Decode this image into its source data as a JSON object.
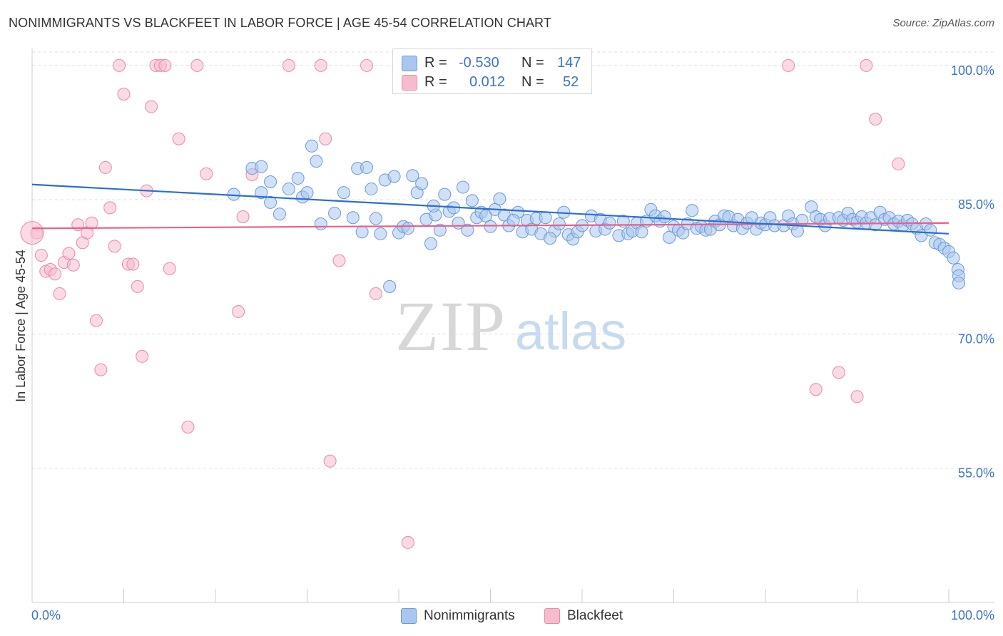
{
  "title": "NONIMMIGRANTS VS BLACKFEET IN LABOR FORCE | AGE 45-54 CORRELATION CHART",
  "source": "Source: ZipAtlas.com",
  "watermark": {
    "zip": "ZIP",
    "atlas": "atlas"
  },
  "legend": {
    "rows": [
      {
        "r_label": "R =",
        "r_value": "-0.530",
        "n_label": "N =",
        "n_value": "147"
      },
      {
        "r_label": "R =",
        "r_value": "0.012",
        "n_label": "N =",
        "n_value": "52"
      }
    ]
  },
  "bottom_legend": [
    "Nonimmigrants",
    "Blackfeet"
  ],
  "colors": {
    "blue_fill": "#a9c7ee",
    "blue_stroke": "#6a9ad8",
    "blue_line": "#2a6fd0",
    "pink_fill": "#f6bccd",
    "pink_stroke": "#ea8aa8",
    "pink_line": "#e8608a",
    "axis_label": "#3a74c8",
    "grid": "#dddddd"
  },
  "chart_data": {
    "type": "scatter",
    "title": "NONIMMIGRANTS VS BLACKFEET IN LABOR FORCE | AGE 45-54 CORRELATION CHART",
    "xlabel": "",
    "ylabel": "In Labor Force | Age 45-54",
    "xlim": [
      0,
      100
    ],
    "ylim": [
      40,
      101.5
    ],
    "x_tick_labels": [
      "0.0%",
      "100.0%"
    ],
    "y_ticks": [
      55,
      70,
      85,
      100
    ],
    "y_tick_labels": [
      "55.0%",
      "70.0%",
      "85.0%",
      "100.0%"
    ],
    "grid": true,
    "legend_position": "top-center",
    "series": [
      {
        "name": "Nonimmigrants",
        "trend": [
          [
            0,
            86.7
          ],
          [
            100,
            81.2
          ]
        ],
        "points": [
          [
            22.0,
            85.6
          ],
          [
            24.0,
            88.5
          ],
          [
            25.0,
            88.7
          ],
          [
            25.0,
            85.8
          ],
          [
            26.0,
            84.7
          ],
          [
            26.0,
            87.0
          ],
          [
            27.0,
            83.4
          ],
          [
            28.0,
            86.2
          ],
          [
            29.0,
            87.4
          ],
          [
            29.5,
            85.3
          ],
          [
            30.0,
            85.8
          ],
          [
            30.5,
            91.0
          ],
          [
            31.0,
            89.3
          ],
          [
            31.5,
            82.3
          ],
          [
            33.0,
            83.5
          ],
          [
            34.0,
            85.8
          ],
          [
            35.0,
            83.0
          ],
          [
            35.5,
            88.5
          ],
          [
            36.0,
            81.4
          ],
          [
            36.5,
            88.6
          ],
          [
            37.0,
            86.2
          ],
          [
            38.0,
            81.2
          ],
          [
            38.5,
            87.2
          ],
          [
            39.0,
            75.3
          ],
          [
            39.5,
            87.6
          ],
          [
            40.0,
            81.3
          ],
          [
            40.5,
            82.0
          ],
          [
            41.0,
            81.8
          ],
          [
            41.5,
            87.7
          ],
          [
            42.0,
            85.8
          ],
          [
            42.5,
            86.8
          ],
          [
            43.0,
            82.8
          ],
          [
            43.5,
            80.1
          ],
          [
            44.0,
            83.3
          ],
          [
            44.5,
            81.6
          ],
          [
            45.0,
            85.6
          ],
          [
            45.5,
            83.7
          ],
          [
            46.0,
            84.1
          ],
          [
            47.0,
            86.4
          ],
          [
            47.5,
            81.6
          ],
          [
            48.0,
            84.9
          ],
          [
            48.5,
            83.0
          ],
          [
            49.0,
            83.6
          ],
          [
            49.5,
            83.2
          ],
          [
            50.0,
            82.0
          ],
          [
            50.5,
            83.9
          ],
          [
            51.0,
            85.1
          ],
          [
            51.5,
            83.3
          ],
          [
            52.0,
            82.1
          ],
          [
            53.0,
            83.6
          ],
          [
            53.5,
            81.4
          ],
          [
            54.0,
            82.7
          ],
          [
            54.5,
            81.7
          ],
          [
            55.0,
            82.9
          ],
          [
            55.5,
            81.2
          ],
          [
            56.0,
            83.0
          ],
          [
            57.0,
            81.5
          ],
          [
            57.5,
            82.3
          ],
          [
            58.0,
            83.6
          ],
          [
            58.5,
            81.1
          ],
          [
            59.0,
            80.6
          ],
          [
            59.5,
            81.4
          ],
          [
            60.0,
            82.1
          ],
          [
            61.0,
            83.2
          ],
          [
            61.5,
            81.5
          ],
          [
            62.0,
            82.8
          ],
          [
            62.5,
            81.7
          ],
          [
            63.0,
            82.4
          ],
          [
            64.0,
            81.0
          ],
          [
            64.5,
            82.6
          ],
          [
            65.0,
            81.2
          ],
          [
            65.5,
            81.5
          ],
          [
            66.0,
            82.4
          ],
          [
            66.5,
            81.4
          ],
          [
            67.0,
            82.6
          ],
          [
            67.5,
            83.9
          ],
          [
            68.0,
            83.2
          ],
          [
            68.5,
            82.6
          ],
          [
            69.0,
            83.1
          ],
          [
            69.5,
            80.8
          ],
          [
            70.0,
            82.0
          ],
          [
            70.5,
            81.6
          ],
          [
            71.0,
            81.3
          ],
          [
            71.5,
            82.3
          ],
          [
            72.0,
            83.8
          ],
          [
            72.5,
            81.8
          ],
          [
            73.0,
            82.0
          ],
          [
            73.5,
            81.6
          ],
          [
            74.0,
            81.7
          ],
          [
            74.5,
            82.6
          ],
          [
            75.0,
            82.2
          ],
          [
            75.5,
            83.2
          ],
          [
            76.0,
            83.1
          ],
          [
            76.5,
            82.1
          ],
          [
            77.0,
            82.8
          ],
          [
            77.5,
            81.8
          ],
          [
            78.0,
            82.4
          ],
          [
            78.5,
            83.0
          ],
          [
            79.0,
            81.7
          ],
          [
            79.5,
            82.4
          ],
          [
            80.0,
            82.2
          ],
          [
            80.5,
            83.0
          ],
          [
            81.0,
            82.1
          ],
          [
            82.0,
            82.1
          ],
          [
            82.5,
            83.2
          ],
          [
            83.0,
            82.3
          ],
          [
            83.5,
            81.5
          ],
          [
            84.0,
            82.7
          ],
          [
            85.0,
            84.2
          ],
          [
            85.5,
            83.1
          ],
          [
            86.0,
            82.8
          ],
          [
            86.5,
            82.1
          ],
          [
            87.0,
            82.9
          ],
          [
            88.0,
            83.0
          ],
          [
            88.5,
            82.7
          ],
          [
            89.0,
            83.5
          ],
          [
            89.5,
            82.8
          ],
          [
            90.0,
            82.5
          ],
          [
            90.5,
            83.1
          ],
          [
            91.0,
            82.4
          ],
          [
            91.5,
            83.0
          ],
          [
            92.0,
            82.2
          ],
          [
            92.5,
            83.6
          ],
          [
            93.0,
            82.8
          ],
          [
            93.5,
            83.0
          ],
          [
            94.0,
            82.3
          ],
          [
            94.5,
            82.6
          ],
          [
            95.0,
            82.1
          ],
          [
            95.5,
            82.7
          ],
          [
            96.0,
            82.3
          ],
          [
            96.5,
            81.8
          ],
          [
            97.0,
            81.0
          ],
          [
            97.5,
            82.3
          ],
          [
            98.0,
            81.6
          ],
          [
            98.5,
            80.2
          ],
          [
            99.0,
            80.0
          ],
          [
            99.5,
            79.6
          ],
          [
            100.0,
            79.2
          ],
          [
            100.5,
            78.5
          ],
          [
            101.0,
            77.2
          ],
          [
            101.5,
            76.5
          ],
          [
            102.0,
            75.7
          ],
          [
            37.5,
            82.9
          ],
          [
            43.8,
            84.3
          ],
          [
            46.5,
            82.4
          ],
          [
            52.5,
            82.7
          ],
          [
            56.5,
            80.7
          ]
        ]
      },
      {
        "name": "Blackfeet",
        "trend": [
          [
            0,
            81.8
          ],
          [
            100,
            82.4
          ]
        ],
        "points": [
          [
            0.5,
            81.3
          ],
          [
            1.0,
            78.8
          ],
          [
            1.5,
            77.0
          ],
          [
            2.0,
            77.2
          ],
          [
            2.5,
            76.7
          ],
          [
            3.0,
            74.5
          ],
          [
            3.5,
            78.0
          ],
          [
            4.0,
            79.0
          ],
          [
            4.5,
            77.7
          ],
          [
            5.0,
            82.2
          ],
          [
            5.5,
            80.2
          ],
          [
            6.0,
            81.3
          ],
          [
            6.5,
            82.4
          ],
          [
            7.0,
            71.5
          ],
          [
            7.5,
            66.0
          ],
          [
            8.0,
            88.6
          ],
          [
            8.5,
            84.1
          ],
          [
            9.0,
            79.8
          ],
          [
            9.5,
            100.0
          ],
          [
            10.0,
            96.8
          ],
          [
            10.5,
            77.8
          ],
          [
            11.0,
            77.8
          ],
          [
            11.5,
            75.3
          ],
          [
            12.0,
            67.5
          ],
          [
            12.5,
            86.0
          ],
          [
            13.0,
            95.4
          ],
          [
            13.5,
            100.0
          ],
          [
            14.0,
            100.0
          ],
          [
            14.5,
            100.0
          ],
          [
            15.0,
            77.3
          ],
          [
            16.0,
            91.8
          ],
          [
            17.0,
            59.6
          ],
          [
            18.0,
            100.0
          ],
          [
            19.0,
            87.9
          ],
          [
            22.5,
            72.5
          ],
          [
            23.0,
            83.1
          ],
          [
            24.0,
            87.8
          ],
          [
            28.0,
            100.0
          ],
          [
            31.5,
            100.0
          ],
          [
            32.0,
            91.8
          ],
          [
            32.5,
            55.8
          ],
          [
            33.5,
            78.2
          ],
          [
            36.5,
            100.0
          ],
          [
            37.5,
            74.5
          ],
          [
            41.0,
            46.7
          ],
          [
            82.5,
            100.0
          ],
          [
            85.5,
            63.8
          ],
          [
            88.0,
            65.7
          ],
          [
            90.0,
            63.0
          ],
          [
            91.0,
            100.0
          ],
          [
            92.0,
            94.0
          ],
          [
            94.5,
            89.0
          ]
        ]
      }
    ]
  }
}
